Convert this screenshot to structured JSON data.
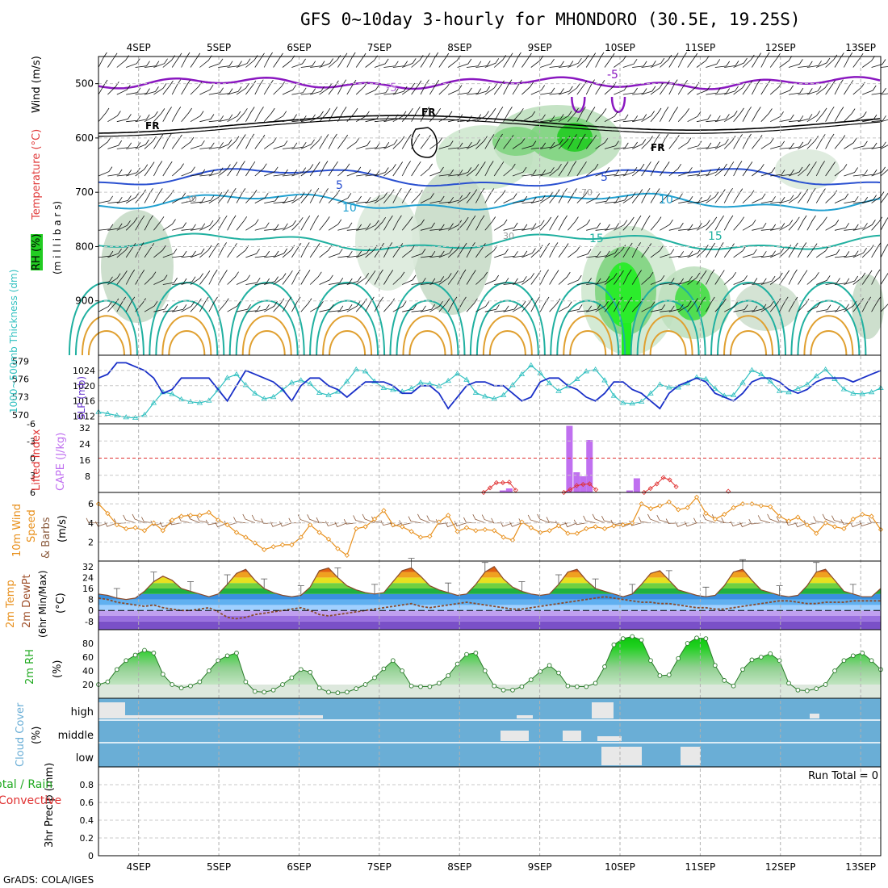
{
  "title": "GFS 0~10day 3-hourly for MHONDORO (30.5E, 19.25S)",
  "footer": "GrADS: COLA/IGES",
  "date_labels": [
    "4SEP",
    "5SEP",
    "6SEP",
    "7SEP",
    "8SEP",
    "9SEP",
    "10SEP",
    "11SEP",
    "12SEP",
    "13SEP"
  ],
  "colors": {
    "temp_contour": "#e0a030",
    "wind_contour_5": "#2a50d0",
    "wind_contour_10": "#20a0d0",
    "wind_contour_15": "#20b0a0",
    "minus5_contour": "#8a18c0",
    "freezing": "#000000",
    "rh_fill": "#00cc00",
    "slp_line": "#1a30c8",
    "thickness_line": "#30c0c0",
    "li_line": "#e03030",
    "cape_bar": "#c070f0",
    "wind_speed": "#e8901c",
    "barbs": "#8a5a3c",
    "cloud_fill": "#6aaed6",
    "cloud_gap": "#e8e8e8"
  },
  "labels": {
    "wind": "Wind (m/s)",
    "temperature": "Temperature (°C)",
    "rh": "RH (%)",
    "millibars": "(m i l l i b a r s)",
    "thickness": "1000~500mb Thickness (dm)",
    "slp": "SLP (mb)",
    "lifted_index": "Lifted Index",
    "cape": "CAPE (J/kg)",
    "wind10": "10m Wind",
    "speed": "Speed",
    "barbs": "& Barbs",
    "ms": "(m/s)",
    "temp2m": "2m Temp",
    "dewpt2m": "2m DewPt",
    "minmax": "(6hr Min/Max)",
    "degc": "(°C)",
    "rh2m": "2m RH",
    "pct": "(%)",
    "cloud_cover": "Cloud Cover",
    "precip_total": "Total / Rain",
    "precip_conv": "Convective",
    "precip_axis": "3hr Precip (mm)",
    "run_total": "Run Total = 0"
  },
  "chart_data": [
    {
      "type": "heatmap",
      "panel": "upper-air",
      "ylabel": "millibars",
      "yticks": [
        500,
        600,
        700,
        800,
        900
      ],
      "ylim": [
        1000,
        450
      ],
      "contour_labels": {
        "neg5": "-5",
        "fr": "FR",
        "w5": "5",
        "w10": "10",
        "w15": "15"
      },
      "rh_labels": [
        "30",
        "70"
      ],
      "temp_peaks_days": [
        3.6,
        4.6,
        5.6,
        6.6,
        7.6,
        8.6,
        9.6,
        10.6,
        11.6,
        12.6
      ]
    },
    {
      "type": "line",
      "panel": "slp-thickness",
      "y_left_ticks": [
        570,
        573,
        576,
        579
      ],
      "y_right_ticks": [
        1012,
        1016,
        1020,
        1024
      ],
      "series": [
        {
          "name": "SLP",
          "values": [
            1022,
            1023,
            1026,
            1026,
            1025,
            1024,
            1022,
            1018,
            1019,
            1022,
            1022,
            1022,
            1022,
            1019,
            1016,
            1020,
            1024,
            1023,
            1022,
            1021,
            1019,
            1016,
            1020,
            1022,
            1022,
            1020,
            1019,
            1017,
            1019,
            1021,
            1021,
            1021,
            1020,
            1018,
            1018,
            1020,
            1020,
            1018,
            1014,
            1017,
            1020,
            1021,
            1021,
            1020,
            1020,
            1018,
            1016,
            1017,
            1021,
            1022,
            1022,
            1020,
            1019,
            1017,
            1016,
            1018,
            1021,
            1021,
            1019,
            1018,
            1016,
            1014,
            1018,
            1020,
            1021,
            1022,
            1021,
            1018,
            1017,
            1016,
            1018,
            1021,
            1022,
            1022,
            1021,
            1019,
            1018,
            1019,
            1021,
            1022,
            1022,
            1022,
            1021,
            1022,
            1023,
            1024
          ]
        },
        {
          "name": "1000~500mb Thickness",
          "values": [
            570.5,
            570.2,
            569.9,
            569.6,
            569.5,
            570.0,
            572.0,
            573.8,
            573.5,
            572.6,
            572.2,
            572.0,
            572.4,
            574.2,
            576.2,
            576.8,
            575.0,
            573.6,
            572.7,
            573.0,
            574.2,
            575.4,
            575.8,
            575.2,
            573.7,
            573.3,
            573.9,
            575.6,
            577.6,
            577.3,
            575.6,
            574.5,
            574.2,
            573.9,
            574.4,
            575.4,
            575.2,
            574.8,
            575.7,
            576.9,
            575.9,
            573.7,
            573.1,
            572.7,
            573.3,
            575.0,
            576.8,
            578.3,
            577.0,
            575.3,
            574.0,
            574.8,
            576.0,
            577.3,
            577.6,
            575.8,
            573.2,
            572.0,
            571.9,
            572.2,
            573.6,
            575.1,
            574.6,
            574.6,
            575.3,
            576.3,
            576.0,
            574.4,
            573.2,
            573.3,
            575.4,
            577.5,
            576.8,
            575.6,
            574.0,
            573.8,
            574.4,
            575.1,
            576.5,
            577.6,
            576.0,
            574.3,
            573.6,
            573.5,
            573.8,
            574.5
          ]
        }
      ]
    },
    {
      "type": "bar",
      "panel": "li-cape",
      "li_ticks": [
        6,
        3,
        0,
        -3,
        -6
      ],
      "cape_ticks": [
        8,
        16,
        24,
        32
      ],
      "series": [
        {
          "name": "CAPE",
          "x_days": [
            8.54,
            8.62,
            9.37,
            9.46,
            9.54,
            9.62,
            10.12,
            10.21
          ],
          "values": [
            1,
            2,
            33,
            10,
            8,
            26,
            1,
            7
          ]
        },
        {
          "name": "Lifted Index",
          "x_days": [
            8.3,
            8.38,
            8.46,
            8.54,
            8.62,
            8.7,
            9.3,
            9.38,
            9.46,
            9.54,
            9.62,
            9.7,
            10.3,
            10.38,
            10.46,
            10.54,
            10.62,
            10.7,
            11.35
          ],
          "values": [
            6,
            5.2,
            4.3,
            4.3,
            4.2,
            5.6,
            6,
            5.5,
            4.8,
            4.6,
            4.5,
            5.5,
            6,
            5.3,
            4.5,
            3.4,
            3.8,
            5,
            5.8
          ]
        }
      ]
    },
    {
      "type": "line",
      "panel": "wind10m",
      "yticks": [
        2,
        4,
        6
      ],
      "series": [
        {
          "name": "Speed",
          "values": [
            6.0,
            5.0,
            3.8,
            3.4,
            3.5,
            3.2,
            4.0,
            3.2,
            4.3,
            4.7,
            4.8,
            4.8,
            5.1,
            4.3,
            3.8,
            3.0,
            2.5,
            1.9,
            1.2,
            1.5,
            1.7,
            1.7,
            2.5,
            3.8,
            3.0,
            2.3,
            1.3,
            0.6,
            3.4,
            3.6,
            4.4,
            5.3,
            3.8,
            3.6,
            3.1,
            2.5,
            2.6,
            4.1,
            4.8,
            3.1,
            3.5,
            3.2,
            3.3,
            3.2,
            2.5,
            2.2,
            4.1,
            3.5,
            3.0,
            3.2,
            3.7,
            2.9,
            2.9,
            3.4,
            3.6,
            3.4,
            3.7,
            3.8,
            4.0,
            6.0,
            5.5,
            5.8,
            6.2,
            5.4,
            5.6,
            6.7,
            5.0,
            4.4,
            4.9,
            5.6,
            6.0,
            6.0,
            5.8,
            5.7,
            4.7,
            4.2,
            4.6,
            3.8,
            2.9,
            4.0,
            3.6,
            3.4,
            4.4,
            4.9,
            4.7,
            3.3
          ]
        }
      ]
    },
    {
      "type": "area",
      "panel": "temp2m",
      "yticks": [
        -8,
        0,
        8,
        16,
        24,
        32
      ],
      "series": [
        {
          "name": "2m Temp",
          "values": [
            12,
            11,
            9,
            8,
            9,
            14,
            21,
            25,
            22,
            16,
            14,
            12,
            10,
            12,
            19,
            27,
            30,
            22,
            16,
            13,
            11,
            10,
            11,
            17,
            29,
            31,
            24,
            18,
            15,
            13,
            12,
            13,
            21,
            29,
            31,
            25,
            18,
            15,
            13,
            11,
            12,
            19,
            28,
            32,
            23,
            17,
            14,
            12,
            11,
            12,
            19,
            28,
            30,
            22,
            16,
            14,
            12,
            10,
            12,
            19,
            27,
            29,
            22,
            15,
            13,
            11,
            10,
            11,
            18,
            28,
            30,
            22,
            15,
            13,
            11,
            10,
            11,
            18,
            28,
            30,
            22,
            14,
            12,
            10,
            10,
            16
          ]
        },
        {
          "name": "2m DewPt",
          "values": [
            9,
            8,
            6,
            5,
            4,
            3,
            4,
            2,
            1,
            0,
            0,
            1,
            2,
            -1,
            -5,
            -6,
            -5,
            -3,
            -2,
            -1,
            0,
            1,
            2,
            0,
            -3,
            -4,
            -3,
            -2,
            -1,
            0,
            1,
            2,
            3,
            4,
            5,
            3,
            2,
            3,
            4,
            5,
            6,
            5,
            4,
            3,
            2,
            1,
            1,
            2,
            3,
            4,
            5,
            6,
            7,
            8,
            9,
            10,
            9,
            8,
            7,
            6,
            6,
            5,
            5,
            4,
            3,
            2,
            2,
            1,
            1,
            2,
            3,
            4,
            5,
            6,
            7,
            7,
            6,
            5,
            5,
            6,
            6,
            6,
            7,
            7,
            7,
            7
          ]
        }
      ]
    },
    {
      "type": "area",
      "panel": "rh2m",
      "yticks": [
        20,
        40,
        60,
        80
      ],
      "series": [
        {
          "name": "2m RH",
          "values": [
            20,
            24,
            42,
            55,
            63,
            70,
            66,
            35,
            20,
            15,
            18,
            24,
            40,
            55,
            62,
            66,
            24,
            10,
            9,
            12,
            20,
            30,
            42,
            38,
            15,
            9,
            8,
            9,
            14,
            20,
            30,
            43,
            55,
            40,
            18,
            17,
            17,
            22,
            33,
            50,
            64,
            66,
            40,
            18,
            12,
            12,
            17,
            27,
            39,
            48,
            37,
            18,
            17,
            17,
            22,
            46,
            78,
            87,
            90,
            85,
            55,
            33,
            34,
            58,
            80,
            88,
            87,
            48,
            26,
            18,
            42,
            56,
            60,
            65,
            55,
            22,
            12,
            11,
            14,
            20,
            40,
            55,
            62,
            66,
            55,
            42
          ]
        }
      ]
    },
    {
      "type": "area",
      "panel": "cloud-cover",
      "categories": [
        "high",
        "middle",
        "low"
      ],
      "layers": [
        "high",
        "middle",
        "low"
      ]
    },
    {
      "type": "bar",
      "panel": "precip",
      "yticks": [
        0,
        0.2,
        0.4,
        0.6,
        0.8
      ],
      "ylim": [
        0,
        1
      ],
      "values": []
    }
  ]
}
